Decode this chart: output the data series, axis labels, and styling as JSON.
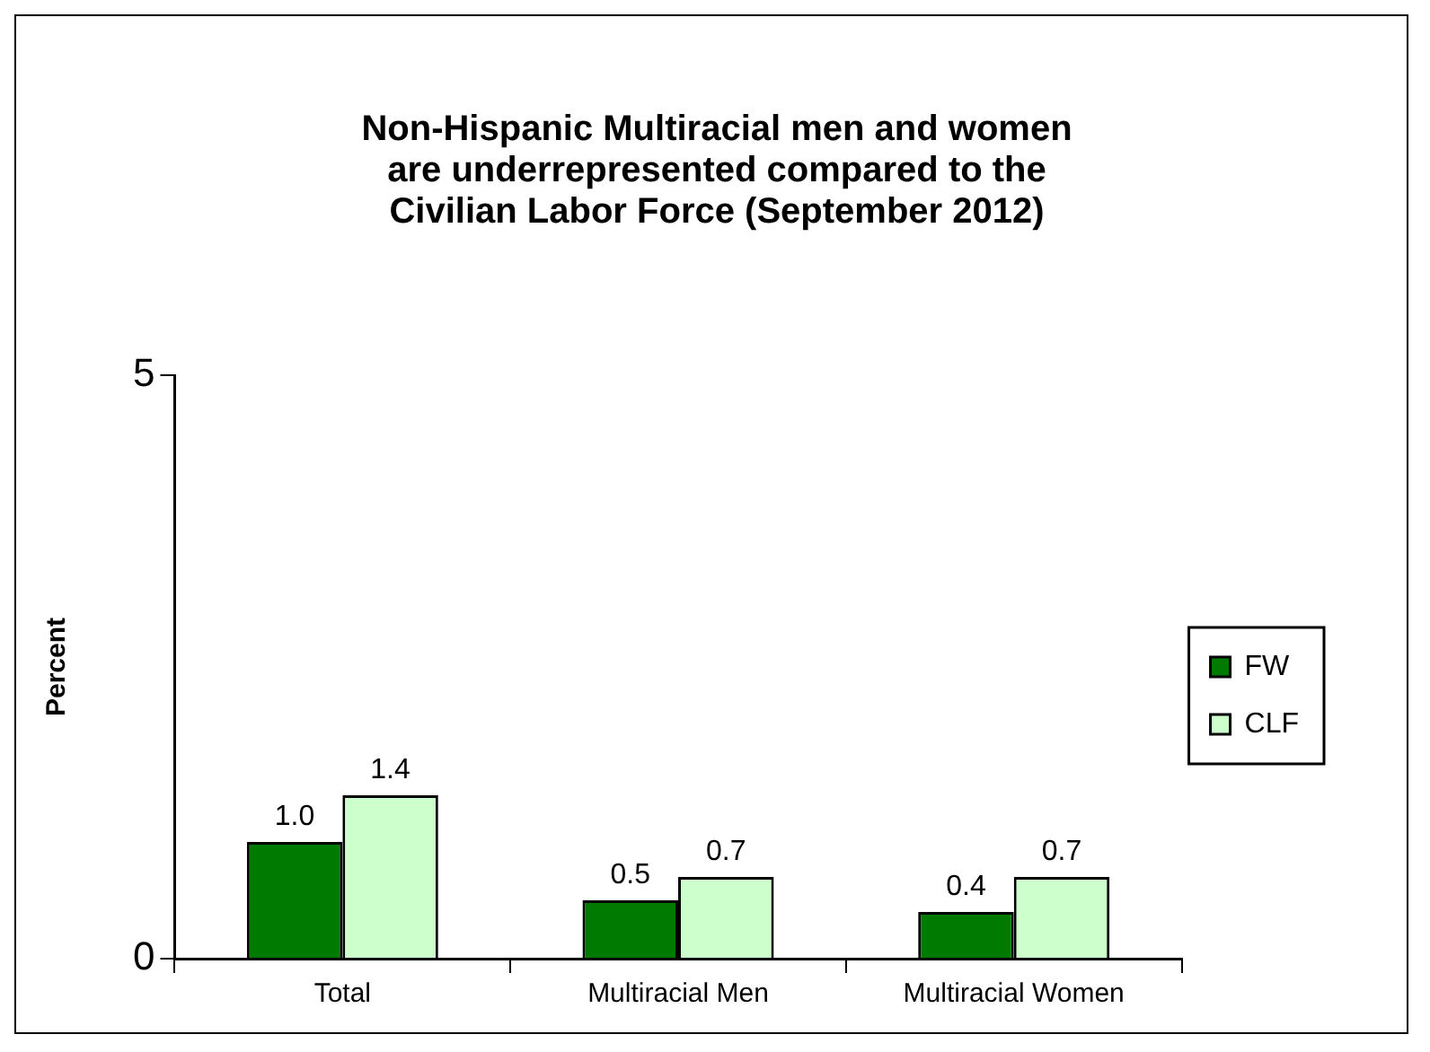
{
  "chart_data": {
    "type": "bar",
    "title": "Non-Hispanic Multiracial men and women are underrepresented compared to the Civilian Labor Force (September 2012)",
    "ylabel": "Percent",
    "categories": [
      "Total",
      "Multiracial Men",
      "Multiracial Women"
    ],
    "series": [
      {
        "name": "FW",
        "color": "#007a00",
        "values": [
          1.0,
          0.5,
          0.4
        ],
        "value_labels": [
          "1.0",
          "0.5",
          "0.4"
        ]
      },
      {
        "name": "CLF",
        "color": "#ccffcc",
        "values": [
          1.4,
          0.7,
          0.7
        ],
        "value_labels": [
          "1.4",
          "0.7",
          "0.7"
        ]
      }
    ],
    "ylim": [
      0,
      5
    ],
    "yticks": [
      0,
      5
    ],
    "grid": false,
    "legend": "right"
  }
}
